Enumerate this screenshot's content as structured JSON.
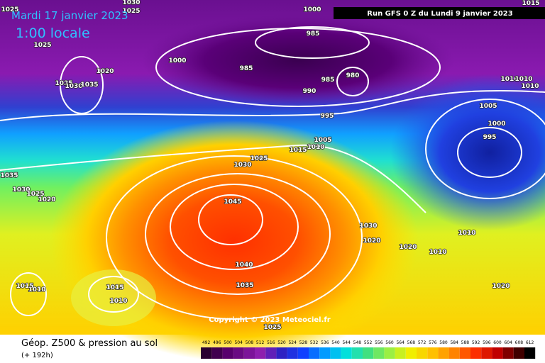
{
  "header": {
    "date": "Mardi 17 janvier 2023",
    "time": "1:00 locale",
    "run": "Run GFS 0 Z du Lundi 9 janvier 2023"
  },
  "map": {
    "isobar_labels": [
      1025,
      1030,
      1025,
      1000,
      1015,
      985,
      1025,
      1000,
      1020,
      985,
      985,
      980,
      1025,
      1030,
      1035,
      990,
      1010,
      1010,
      1010,
      995,
      1005,
      1000,
      995,
      1005,
      1010,
      1015,
      1025,
      1030,
      1035,
      1030,
      1025,
      1020,
      1045,
      1030,
      1010,
      1020,
      1020,
      1010,
      1040,
      1035,
      1015,
      1010,
      1015,
      1010,
      1020,
      1025
    ],
    "copyright": "Copyright © 2023 Meteociel.fr"
  },
  "legend": {
    "title": "Géop. Z500 & pression au sol",
    "lead_time": "(+ 192h)",
    "scale": [
      492,
      496,
      500,
      504,
      508,
      512,
      516,
      520,
      524,
      528,
      532,
      536,
      540,
      544,
      548,
      552,
      556,
      560,
      564,
      568,
      572,
      576,
      580,
      584,
      588,
      592,
      596,
      600,
      604,
      608,
      612
    ]
  }
}
